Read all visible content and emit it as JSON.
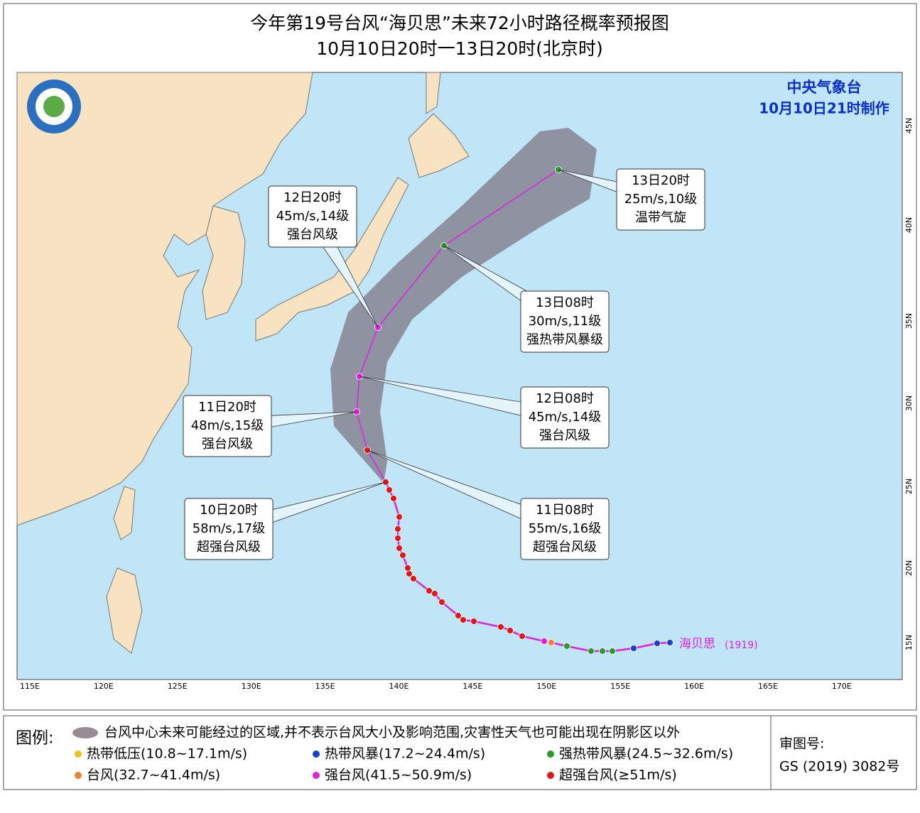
{
  "header": {
    "title": "今年第19号台风“海贝思”未来72小时路径概率预报图",
    "subtitle": "10月10日20时一13日20时(北京时)"
  },
  "agency": {
    "name": "中央气象台",
    "made": "10月10日21时制作"
  },
  "map": {
    "lon_labels": [
      "115E",
      "120E",
      "125E",
      "130E",
      "135E",
      "140E",
      "145E",
      "150E",
      "155E",
      "160E",
      "165E",
      "170E"
    ],
    "lat_labels": [
      "15N",
      "20N",
      "25N",
      "30N",
      "35N",
      "40N",
      "45N"
    ],
    "storm": {
      "name": "海贝思",
      "code": "(1919)"
    },
    "callouts": [
      {
        "lines": [
          "12日20时",
          "45m/s,14级",
          "强台风级"
        ]
      },
      {
        "lines": [
          "13日20时",
          "25m/s,10级",
          "温带气旋"
        ]
      },
      {
        "lines": [
          "13日08时",
          "30m/s,11级",
          "强热带风暴级"
        ]
      },
      {
        "lines": [
          "12日08时",
          "45m/s,14级",
          "强台风级"
        ]
      },
      {
        "lines": [
          "11日20时",
          "48m/s,15级",
          "强台风级"
        ]
      },
      {
        "lines": [
          "10日20时",
          "58m/s,17级",
          "超强台风级"
        ]
      },
      {
        "lines": [
          "11日08时",
          "55m/s,16级",
          "超强台风级"
        ]
      }
    ]
  },
  "legend": {
    "title": "图例:",
    "cone": "台风中心未来可能经过的区域,并不表示台风大小及影响范围,灾害性天气也可能出现在阴影区以外",
    "items": [
      "热带低压(10.8~17.1m/s)",
      "热带风暴(17.2~24.4m/s)",
      "强热带风暴(24.5~32.6m/s)",
      "台风(32.7~41.4m/s)",
      "强台风(41.5~50.9m/s)",
      "超强台风(≥51m/s)"
    ],
    "approval_label": "审图号:",
    "approval_number": "GS (2019) 3082号"
  }
}
